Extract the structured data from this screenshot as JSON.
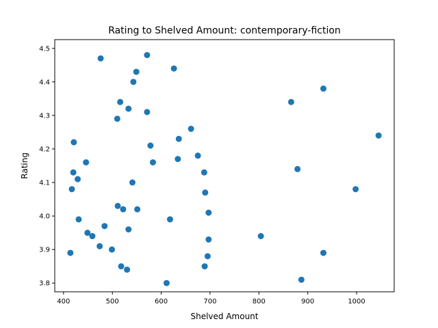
{
  "chart_data": {
    "type": "scatter",
    "title": "Rating to Shelved Amount: contemporary-fiction",
    "xlabel": "Shelved Amount",
    "ylabel": "Rating",
    "xlim": [
      382,
      1077
    ],
    "ylim": [
      3.774,
      4.526
    ],
    "xticks": [
      400,
      500,
      600,
      700,
      800,
      900,
      1000
    ],
    "yticks": [
      3.8,
      3.9,
      4.0,
      4.1,
      4.2,
      4.3,
      4.4,
      4.5
    ],
    "ytick_labels": [
      "3.8",
      "3.9",
      "4.0",
      "4.1",
      "4.2",
      "4.3",
      "4.4",
      "4.5"
    ],
    "grid": false,
    "point_color": "#1f77b4",
    "points": [
      {
        "x": 476,
        "y": 4.47
      },
      {
        "x": 571,
        "y": 4.48
      },
      {
        "x": 626,
        "y": 4.44
      },
      {
        "x": 549,
        "y": 4.43
      },
      {
        "x": 543,
        "y": 4.4
      },
      {
        "x": 932,
        "y": 4.38
      },
      {
        "x": 866,
        "y": 4.34
      },
      {
        "x": 516,
        "y": 4.34
      },
      {
        "x": 533,
        "y": 4.32
      },
      {
        "x": 571,
        "y": 4.31
      },
      {
        "x": 510,
        "y": 4.29
      },
      {
        "x": 661,
        "y": 4.26
      },
      {
        "x": 1045,
        "y": 4.24
      },
      {
        "x": 636,
        "y": 4.23
      },
      {
        "x": 421,
        "y": 4.22
      },
      {
        "x": 578,
        "y": 4.21
      },
      {
        "x": 675,
        "y": 4.18
      },
      {
        "x": 634,
        "y": 4.17
      },
      {
        "x": 446,
        "y": 4.16
      },
      {
        "x": 583,
        "y": 4.16
      },
      {
        "x": 879,
        "y": 4.14
      },
      {
        "x": 420,
        "y": 4.13
      },
      {
        "x": 688,
        "y": 4.13
      },
      {
        "x": 429,
        "y": 4.11
      },
      {
        "x": 541,
        "y": 4.1
      },
      {
        "x": 417,
        "y": 4.08
      },
      {
        "x": 998,
        "y": 4.08
      },
      {
        "x": 690,
        "y": 4.07
      },
      {
        "x": 511,
        "y": 4.03
      },
      {
        "x": 522,
        "y": 4.02
      },
      {
        "x": 551,
        "y": 4.02
      },
      {
        "x": 697,
        "y": 4.01
      },
      {
        "x": 431,
        "y": 3.99
      },
      {
        "x": 618,
        "y": 3.99
      },
      {
        "x": 484,
        "y": 3.97
      },
      {
        "x": 533,
        "y": 3.96
      },
      {
        "x": 449,
        "y": 3.95
      },
      {
        "x": 459,
        "y": 3.94
      },
      {
        "x": 804,
        "y": 3.94
      },
      {
        "x": 697,
        "y": 3.93
      },
      {
        "x": 474,
        "y": 3.91
      },
      {
        "x": 499,
        "y": 3.9
      },
      {
        "x": 414,
        "y": 3.89
      },
      {
        "x": 932,
        "y": 3.89
      },
      {
        "x": 695,
        "y": 3.88
      },
      {
        "x": 518,
        "y": 3.85
      },
      {
        "x": 689,
        "y": 3.85
      },
      {
        "x": 530,
        "y": 3.84
      },
      {
        "x": 887,
        "y": 3.81
      },
      {
        "x": 611,
        "y": 3.8
      }
    ]
  }
}
